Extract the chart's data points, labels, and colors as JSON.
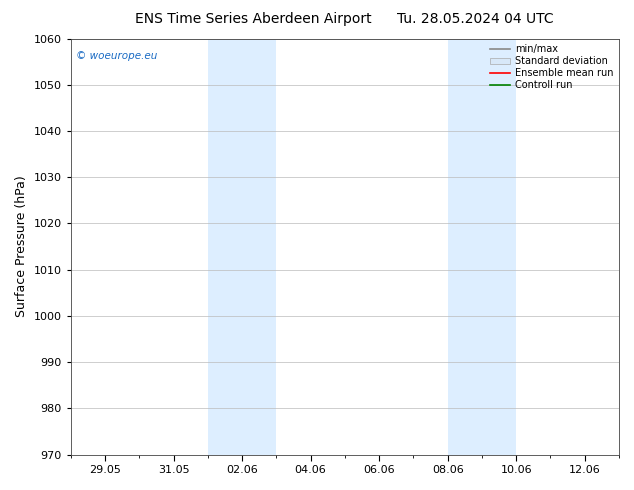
{
  "title": "ENS Time Series Aberdeen Airport",
  "title2": "Tu. 28.05.2024 04 UTC",
  "ylabel": "Surface Pressure (hPa)",
  "ylim": [
    970,
    1060
  ],
  "yticks": [
    970,
    980,
    990,
    1000,
    1010,
    1020,
    1030,
    1040,
    1050,
    1060
  ],
  "xtick_labels": [
    "29.05",
    "31.05",
    "02.06",
    "04.06",
    "06.06",
    "08.06",
    "10.06",
    "12.06"
  ],
  "xtick_positions": [
    1,
    3,
    5,
    7,
    9,
    11,
    13,
    15
  ],
  "xlim": [
    0,
    16
  ],
  "shaded_regions": [
    {
      "x_start": 4.0,
      "x_end": 5.0
    },
    {
      "x_start": 5.0,
      "x_end": 6.0
    },
    {
      "x_start": 11.0,
      "x_end": 12.0
    },
    {
      "x_start": 12.0,
      "x_end": 13.0
    }
  ],
  "shaded_color": "#ddeeff",
  "background_color": "#ffffff",
  "plot_bg_color": "#ffffff",
  "grid_color": "#bbbbbb",
  "watermark": "© woeurope.eu",
  "watermark_color": "#1a6bc4",
  "legend_items": [
    {
      "label": "min/max",
      "color": "#888888",
      "lw": 1.2,
      "style": "-"
    },
    {
      "label": "Standard deviation",
      "color": "#cccccc",
      "lw": 8,
      "style": "-"
    },
    {
      "label": "Ensemble mean run",
      "color": "#ff0000",
      "lw": 1.2,
      "style": "-"
    },
    {
      "label": "Controll run",
      "color": "#008000",
      "lw": 1.2,
      "style": "-"
    }
  ],
  "title_fontsize": 10,
  "axis_fontsize": 8,
  "ylabel_fontsize": 9
}
